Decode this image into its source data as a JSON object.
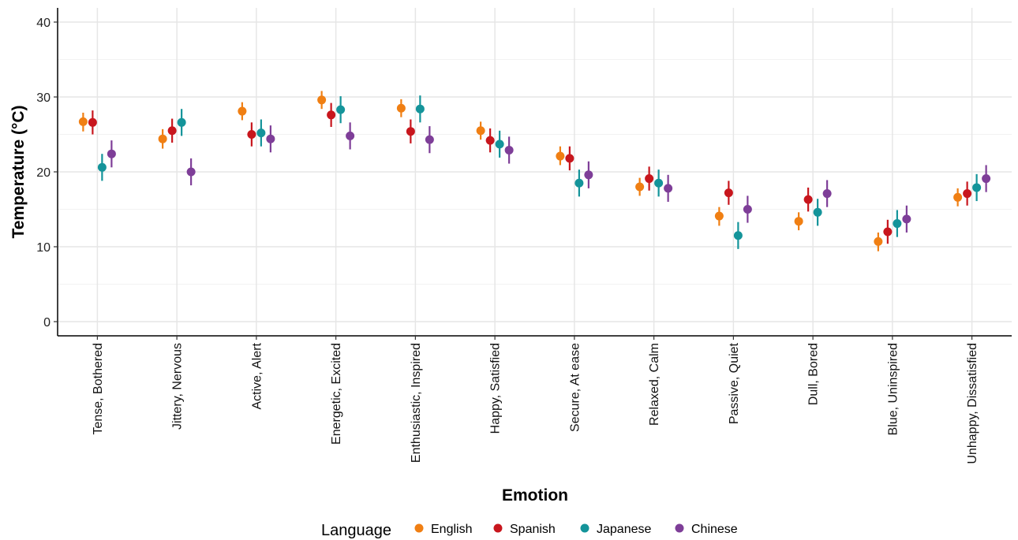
{
  "chart_data": {
    "type": "scatter",
    "xlabel": "Emotion",
    "ylabel": "Temperature (°C)",
    "ylim": [
      -2,
      42
    ],
    "yticks": [
      0,
      10,
      20,
      30,
      40
    ],
    "grid": true,
    "legend": {
      "title": "Language",
      "position": "bottom"
    },
    "categories": [
      "Tense, Bothered",
      "Jittery, Nervous",
      "Active, Alert",
      "Energetic, Excited",
      "Enthusiastic, Inspired",
      "Happy, Satisfied",
      "Secure, At ease",
      "Relaxed, Calm",
      "Passive, Quiet",
      "Dull, Bored",
      "Blue, Uninspired",
      "Unhappy, Dissatisfied"
    ],
    "series": [
      {
        "name": "English",
        "color": "#F07F13",
        "values": [
          26.7,
          24.4,
          28.1,
          29.6,
          28.5,
          25.5,
          22.1,
          18.0,
          14.1,
          13.4,
          10.7,
          16.6
        ],
        "lower": [
          25.4,
          23.1,
          26.9,
          28.4,
          27.3,
          24.3,
          20.9,
          16.8,
          12.8,
          12.2,
          9.4,
          15.4
        ],
        "upper": [
          27.9,
          25.7,
          29.3,
          30.8,
          29.7,
          26.7,
          23.4,
          19.2,
          15.3,
          14.6,
          11.9,
          17.8
        ]
      },
      {
        "name": "Spanish",
        "color": "#C8161D",
        "values": [
          26.6,
          25.5,
          25.0,
          27.6,
          25.4,
          24.2,
          21.8,
          19.1,
          17.2,
          16.3,
          12.0,
          17.1
        ],
        "lower": [
          25.0,
          23.9,
          23.4,
          26.0,
          23.8,
          22.6,
          20.2,
          17.5,
          15.6,
          14.7,
          10.4,
          15.5
        ],
        "upper": [
          28.2,
          27.1,
          26.6,
          29.2,
          27.0,
          25.8,
          23.4,
          20.7,
          18.8,
          17.9,
          13.6,
          18.7
        ]
      },
      {
        "name": "Japanese",
        "color": "#14949A",
        "values": [
          20.6,
          26.6,
          25.2,
          28.3,
          28.4,
          23.7,
          18.5,
          18.5,
          11.5,
          14.6,
          13.1,
          17.9
        ],
        "lower": [
          18.8,
          24.8,
          23.4,
          26.5,
          26.6,
          21.9,
          16.7,
          16.7,
          9.7,
          12.8,
          11.3,
          16.1
        ],
        "upper": [
          22.4,
          28.4,
          27.0,
          30.1,
          30.2,
          25.5,
          20.3,
          20.3,
          13.3,
          16.4,
          14.9,
          19.7
        ]
      },
      {
        "name": "Chinese",
        "color": "#7E3E98",
        "values": [
          22.4,
          20.0,
          24.4,
          24.8,
          24.3,
          22.9,
          19.6,
          17.8,
          15.0,
          17.1,
          13.7,
          19.1
        ],
        "lower": [
          20.6,
          18.2,
          22.6,
          23.0,
          22.5,
          21.1,
          17.8,
          16.0,
          13.2,
          15.3,
          11.9,
          17.3
        ],
        "upper": [
          24.2,
          21.8,
          26.2,
          26.6,
          26.1,
          24.7,
          21.4,
          19.6,
          16.8,
          18.9,
          15.5,
          20.9
        ]
      }
    ]
  }
}
